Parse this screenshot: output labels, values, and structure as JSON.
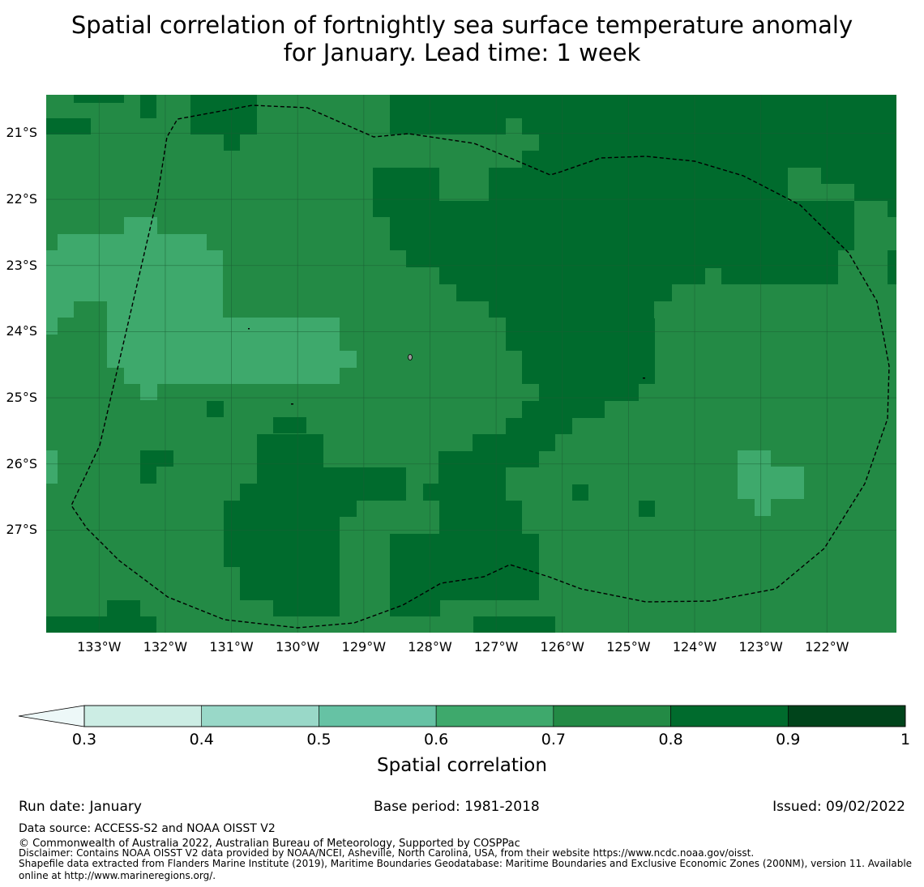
{
  "title": {
    "line1": "Spatial correlation of fortnightly sea surface temperature anomaly",
    "line2": "for January. Lead time: 1 week"
  },
  "map": {
    "lat_labels": [
      "21°S",
      "22°S",
      "23°S",
      "24°S",
      "25°S",
      "26°S",
      "27°S"
    ],
    "lon_labels": [
      "133°W",
      "132°W",
      "131°W",
      "130°W",
      "129°W",
      "128°W",
      "127°W",
      "126°W",
      "125°W",
      "124°W",
      "123°W",
      "122°W"
    ],
    "lon_range": [
      -133.8,
      -120.95
    ],
    "lat_range": [
      -28.55,
      -20.42
    ],
    "colors": {
      "band_0.6_0.7": "#3ea96c",
      "band_0.7_0.8": "#238a45",
      "band_0.8_0.9": "#006b2d",
      "gridline": "#1b5e34"
    }
  },
  "colorbar": {
    "ticks": [
      "0.3",
      "0.4",
      "0.5",
      "0.6",
      "0.7",
      "0.8",
      "0.9",
      "1"
    ],
    "bands": [
      "#ccede4",
      "#99d8c8",
      "#66c2a4",
      "#3ea96c",
      "#238a45",
      "#006b2d",
      "#00441b"
    ],
    "under_color": "#edf8f8",
    "label": "Spatial correlation"
  },
  "footer": {
    "run_date": "Run date: January",
    "base_period": "Base period: 1981-2018",
    "issued": "Issued: 09/02/2022",
    "data_source": "Data source: ACCESS-S2 and NOAA OISST V2",
    "copyright": "© Commonwealth of Australia 2022, Australian Bureau of Meteorology, Supported by COSPPac",
    "disclaimer": "Disclaimer: Contains NOAA OISST V2 data provided by NOAA/NCEI, Asheville, North Carolina, USA, from their website https://www.ncdc.noaa.gov/oisst.",
    "shapefile_line1": "Shapefile data extracted from Flanders Marine Institute (2019), Maritime Boundaries Geodatabase: Maritime Boundaries and Exclusive Economic Zones (200NM), version 11. Available",
    "shapefile_line2": "online at http://www.marineregions.org/."
  }
}
